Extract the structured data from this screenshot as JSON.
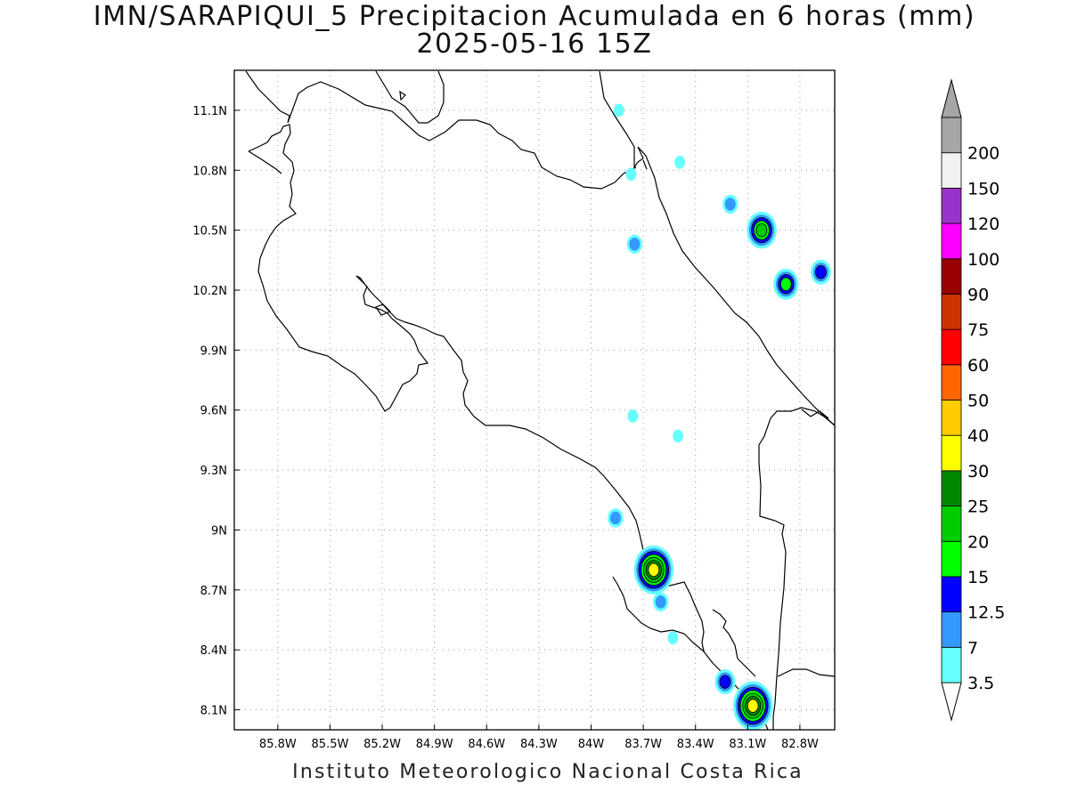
{
  "title": "IMN/SARAPIQUI_5 Precipitacion Acumulada en 6 horas (mm)",
  "subtitle": "2025-05-16 15Z",
  "footer": "Instituto Meteorologico Nacional Costa Rica",
  "map": {
    "lon_range": [
      -86.05,
      -82.6
    ],
    "lat_range": [
      8.0,
      11.3
    ],
    "lon_ticks": [
      {
        "value": -85.8,
        "label": "85.8W"
      },
      {
        "value": -85.5,
        "label": "85.5W"
      },
      {
        "value": -85.2,
        "label": "85.2W"
      },
      {
        "value": -84.9,
        "label": "84.9W"
      },
      {
        "value": -84.6,
        "label": "84.6W"
      },
      {
        "value": -84.3,
        "label": "84.3W"
      },
      {
        "value": -84.0,
        "label": "84W"
      },
      {
        "value": -83.7,
        "label": "83.7W"
      },
      {
        "value": -83.4,
        "label": "83.4W"
      },
      {
        "value": -83.1,
        "label": "83.1W"
      },
      {
        "value": -82.8,
        "label": "82.8W"
      }
    ],
    "lat_ticks": [
      {
        "value": 11.1,
        "label": "11.1N"
      },
      {
        "value": 10.8,
        "label": "10.8N"
      },
      {
        "value": 10.5,
        "label": "10.5N"
      },
      {
        "value": 10.2,
        "label": "10.2N"
      },
      {
        "value": 9.9,
        "label": "9.9N"
      },
      {
        "value": 9.6,
        "label": "9.6N"
      },
      {
        "value": 9.3,
        "label": "9.3N"
      },
      {
        "value": 9.0,
        "label": "9N"
      },
      {
        "value": 8.7,
        "label": "8.7N"
      },
      {
        "value": 8.4,
        "label": "8.4N"
      },
      {
        "value": 8.1,
        "label": "8.1N"
      }
    ],
    "grid": true,
    "grid_style": "dotted"
  },
  "legend": {
    "levels": [
      {
        "label": "3.5",
        "color": "#66ffff"
      },
      {
        "label": "7",
        "color": "#3399ff"
      },
      {
        "label": "12.5",
        "color": "#0000ff"
      },
      {
        "label": "15",
        "color": "#00ff00"
      },
      {
        "label": "20",
        "color": "#00cc00"
      },
      {
        "label": "25",
        "color": "#008800"
      },
      {
        "label": "30",
        "color": "#ffff00"
      },
      {
        "label": "40",
        "color": "#ffcc00"
      },
      {
        "label": "50",
        "color": "#ff6600"
      },
      {
        "label": "60",
        "color": "#ff0000"
      },
      {
        "label": "75",
        "color": "#cc3300"
      },
      {
        "label": "90",
        "color": "#990000"
      },
      {
        "label": "100",
        "color": "#ff00ff"
      },
      {
        "label": "120",
        "color": "#9933cc"
      },
      {
        "label": "150",
        "color": "#f2f2f2"
      },
      {
        "label": "200",
        "color": "#a6a6a6"
      }
    ],
    "top_arrow_color": "#a6a6a6",
    "bottom_arrow_color": "#ffffff"
  },
  "precip_cells": [
    {
      "lon": -83.84,
      "lat": 11.1,
      "max_level": "3.5"
    },
    {
      "lon": -83.77,
      "lat": 10.78,
      "max_level": "3.5"
    },
    {
      "lon": -83.49,
      "lat": 10.84,
      "max_level": "3.5"
    },
    {
      "lon": -83.75,
      "lat": 10.43,
      "max_level": "7"
    },
    {
      "lon": -83.2,
      "lat": 10.63,
      "max_level": "7"
    },
    {
      "lon": -83.02,
      "lat": 10.5,
      "max_level": "20"
    },
    {
      "lon": -82.88,
      "lat": 10.23,
      "max_level": "15"
    },
    {
      "lon": -82.68,
      "lat": 10.29,
      "max_level": "12.5"
    },
    {
      "lon": -83.76,
      "lat": 9.57,
      "max_level": "3.5"
    },
    {
      "lon": -83.5,
      "lat": 9.47,
      "max_level": "3.5"
    },
    {
      "lon": -83.86,
      "lat": 9.06,
      "max_level": "7"
    },
    {
      "lon": -83.64,
      "lat": 8.8,
      "max_level": "30"
    },
    {
      "lon": -83.6,
      "lat": 8.64,
      "max_level": "7"
    },
    {
      "lon": -83.53,
      "lat": 8.46,
      "max_level": "3.5"
    },
    {
      "lon": -83.23,
      "lat": 8.24,
      "max_level": "12.5"
    },
    {
      "lon": -83.07,
      "lat": 8.12,
      "max_level": "30"
    }
  ]
}
